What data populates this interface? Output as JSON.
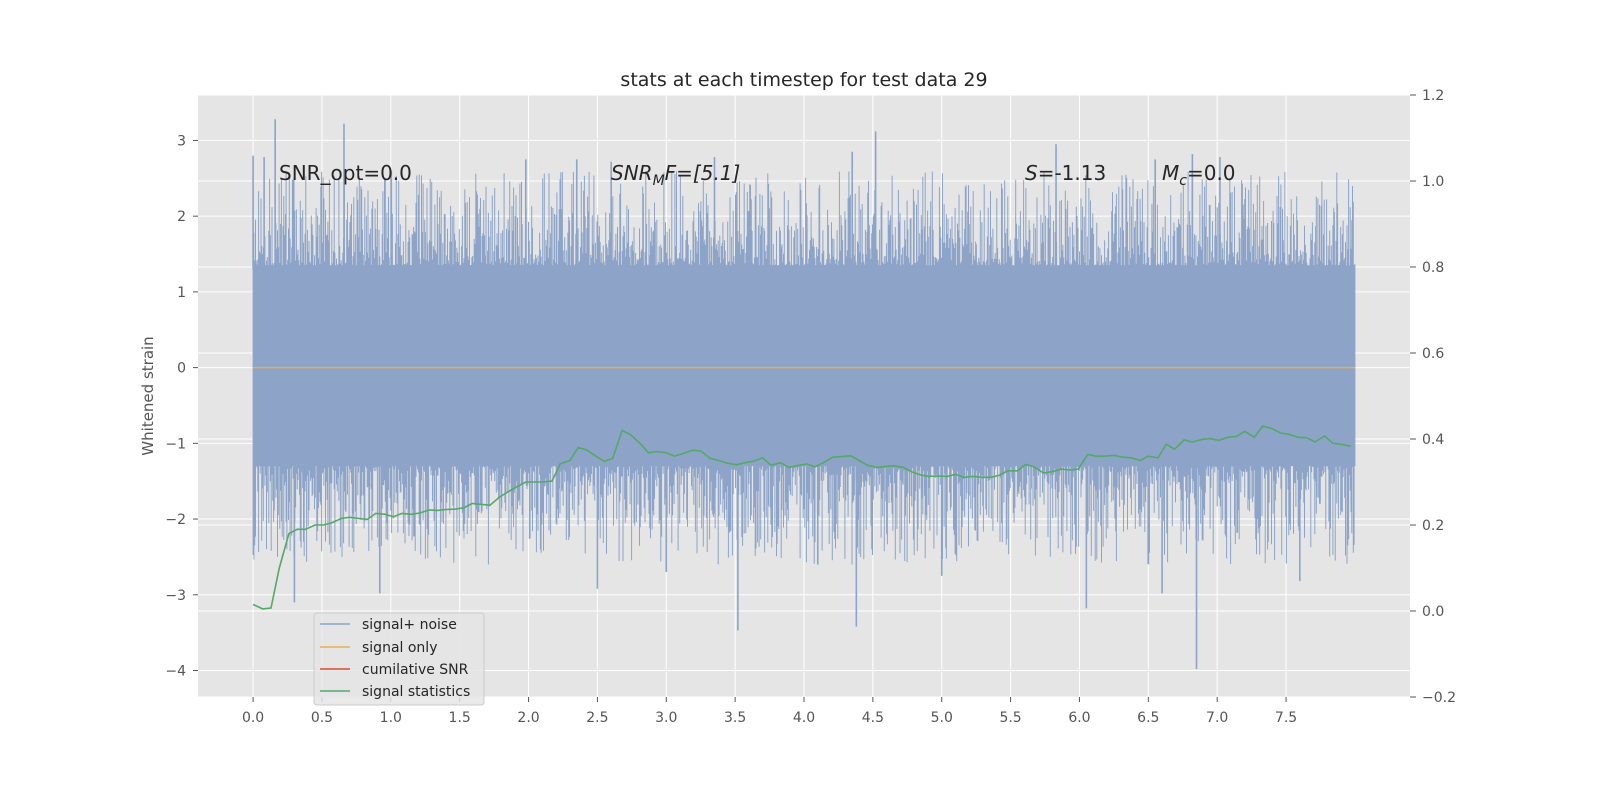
{
  "chart_data": {
    "type": "line",
    "title": "stats at each timestep for test data 29",
    "ylabel": "Whitened strain",
    "xlabel": "",
    "xlim": [
      -0.4,
      8.4
    ],
    "ylim": [
      -4.35,
      3.6
    ],
    "y2lim": [
      -0.2,
      1.2
    ],
    "x_ticks": [
      0.0,
      0.5,
      1.0,
      1.5,
      2.0,
      2.5,
      3.0,
      3.5,
      4.0,
      4.5,
      5.0,
      5.5,
      6.0,
      6.5,
      7.0,
      7.5
    ],
    "x_tick_labels": [
      "0.0",
      "0.5",
      "1.0",
      "1.5",
      "2.0",
      "2.5",
      "3.0",
      "3.5",
      "4.0",
      "4.5",
      "5.0",
      "5.5",
      "6.0",
      "6.5",
      "7.0",
      "7.5"
    ],
    "y_ticks": [
      -4,
      -3,
      -2,
      -1,
      0,
      1,
      2,
      3
    ],
    "y_tick_labels": [
      "−4",
      "−3",
      "−2",
      "−1",
      "0",
      "1",
      "2",
      "3"
    ],
    "y2_ticks": [
      -0.2,
      0.0,
      0.2,
      0.4,
      0.6,
      0.8,
      1.0,
      1.2
    ],
    "y2_tick_labels": [
      "−0.2",
      "0.0",
      "0.2",
      "0.4",
      "0.6",
      "0.8",
      "1.0",
      "1.2"
    ],
    "grid": true,
    "legend_position": "lower-left",
    "annotations": {
      "snr_opt": "SNR_opt=0.0",
      "snr_mf_main": "SNR",
      "snr_mf_sub": "M",
      "snr_mf_tail": "F=[5.1]",
      "s_var": "S",
      "s_val": "=-1.13",
      "mc_var": "M",
      "mc_sub": "c",
      "mc_val": "=0.0"
    },
    "colors": {
      "axes_bg": "#e5e5e5",
      "grid": "#ffffff",
      "noise": "#8da4c8",
      "signal": "#e8b04f",
      "cumulative": "#e24a33",
      "statistics": "#55a868",
      "text": "#262626",
      "tick_text": "#555555"
    },
    "series": [
      {
        "name": "signal+ noise",
        "axis": "left",
        "x_range": [
          0.0,
          8.0
        ],
        "band_low": -1.3,
        "band_high": 1.35,
        "spike_peaks": [
          {
            "x": 0.0,
            "y": 2.8
          },
          {
            "x": 0.08,
            "y": 2.78
          },
          {
            "x": 0.16,
            "y": 3.28
          },
          {
            "x": 0.66,
            "y": 3.22
          },
          {
            "x": 1.98,
            "y": 2.75
          },
          {
            "x": 2.35,
            "y": 2.75
          },
          {
            "x": 2.6,
            "y": 2.72
          },
          {
            "x": 3.35,
            "y": 2.78
          },
          {
            "x": 4.35,
            "y": 2.85
          },
          {
            "x": 4.52,
            "y": 3.12
          },
          {
            "x": 5.83,
            "y": 2.95
          },
          {
            "x": 6.55,
            "y": 2.75
          },
          {
            "x": 6.82,
            "y": 2.82
          },
          {
            "x": 7.02,
            "y": 2.78
          },
          {
            "x": 0.3,
            "y": -3.1
          },
          {
            "x": 0.92,
            "y": -2.98
          },
          {
            "x": 3.52,
            "y": -3.47
          },
          {
            "x": 4.38,
            "y": -3.42
          },
          {
            "x": 6.05,
            "y": -3.18
          },
          {
            "x": 6.85,
            "y": -3.98
          },
          {
            "x": 6.6,
            "y": -2.98
          },
          {
            "x": 5.0,
            "y": -2.75
          },
          {
            "x": 2.5,
            "y": -2.92
          },
          {
            "x": 3.0,
            "y": -2.7
          },
          {
            "x": 7.6,
            "y": -2.82
          },
          {
            "x": 4.1,
            "y": -2.6
          }
        ]
      },
      {
        "name": "signal only",
        "axis": "left",
        "x": [
          0.0,
          8.0
        ],
        "y": [
          0.0,
          0.0
        ]
      },
      {
        "name": "cumilative SNR",
        "axis": "right",
        "x": [],
        "y": []
      },
      {
        "name": "signal statistics",
        "axis": "right",
        "x": [
          0.0,
          0.07,
          0.13,
          0.19,
          0.26,
          0.32,
          0.38,
          0.45,
          0.51,
          0.57,
          0.64,
          0.7,
          0.77,
          0.83,
          0.89,
          0.96,
          1.02,
          1.08,
          1.15,
          1.21,
          1.28,
          1.34,
          1.4,
          1.47,
          1.53,
          1.59,
          1.66,
          1.72,
          1.79,
          1.85,
          1.91,
          1.98,
          2.04,
          2.1,
          2.17,
          2.23,
          2.3,
          2.36,
          2.42,
          2.49,
          2.55,
          2.61,
          2.68,
          2.74,
          2.81,
          2.87,
          2.93,
          3.0,
          3.06,
          3.12,
          3.19,
          3.25,
          3.32,
          3.38,
          3.44,
          3.51,
          3.57,
          3.63,
          3.7,
          3.76,
          3.83,
          3.89,
          3.95,
          4.02,
          4.08,
          4.14,
          4.21,
          4.27,
          4.34,
          4.4,
          4.46,
          4.53,
          4.59,
          4.65,
          4.72,
          4.78,
          4.85,
          4.91,
          4.97,
          5.04,
          5.1,
          5.16,
          5.23,
          5.29,
          5.36,
          5.42,
          5.48,
          5.55,
          5.61,
          5.67,
          5.74,
          5.8,
          5.87,
          5.93,
          5.99,
          6.06,
          6.12,
          6.18,
          6.25,
          6.31,
          6.38,
          6.44,
          6.5,
          6.57,
          6.63,
          6.69,
          6.76,
          6.82,
          6.89,
          6.95,
          7.01,
          7.08,
          7.14,
          7.2,
          7.27,
          7.33,
          7.4,
          7.46,
          7.52,
          7.59,
          7.65,
          7.71,
          7.78,
          7.84,
          7.91,
          7.97
        ],
        "y": [
          0.015,
          0.005,
          0.007,
          0.1,
          0.18,
          0.19,
          0.19,
          0.2,
          0.2,
          0.205,
          0.215,
          0.218,
          0.215,
          0.213,
          0.227,
          0.225,
          0.219,
          0.227,
          0.225,
          0.228,
          0.235,
          0.234,
          0.236,
          0.237,
          0.24,
          0.25,
          0.248,
          0.246,
          0.265,
          0.277,
          0.288,
          0.3,
          0.3,
          0.3,
          0.302,
          0.342,
          0.35,
          0.38,
          0.375,
          0.36,
          0.348,
          0.355,
          0.42,
          0.41,
          0.39,
          0.368,
          0.371,
          0.368,
          0.36,
          0.366,
          0.374,
          0.372,
          0.355,
          0.35,
          0.344,
          0.34,
          0.345,
          0.348,
          0.356,
          0.339,
          0.345,
          0.334,
          0.338,
          0.342,
          0.335,
          0.345,
          0.358,
          0.359,
          0.361,
          0.35,
          0.339,
          0.334,
          0.336,
          0.338,
          0.334,
          0.324,
          0.316,
          0.313,
          0.314,
          0.313,
          0.318,
          0.311,
          0.313,
          0.311,
          0.311,
          0.316,
          0.326,
          0.326,
          0.341,
          0.335,
          0.321,
          0.324,
          0.33,
          0.328,
          0.33,
          0.364,
          0.36,
          0.36,
          0.362,
          0.358,
          0.356,
          0.35,
          0.36,
          0.356,
          0.388,
          0.376,
          0.398,
          0.393,
          0.399,
          0.401,
          0.397,
          0.404,
          0.406,
          0.418,
          0.404,
          0.43,
          0.424,
          0.414,
          0.411,
          0.404,
          0.403,
          0.393,
          0.407,
          0.39,
          0.387,
          0.383
        ]
      }
    ]
  }
}
